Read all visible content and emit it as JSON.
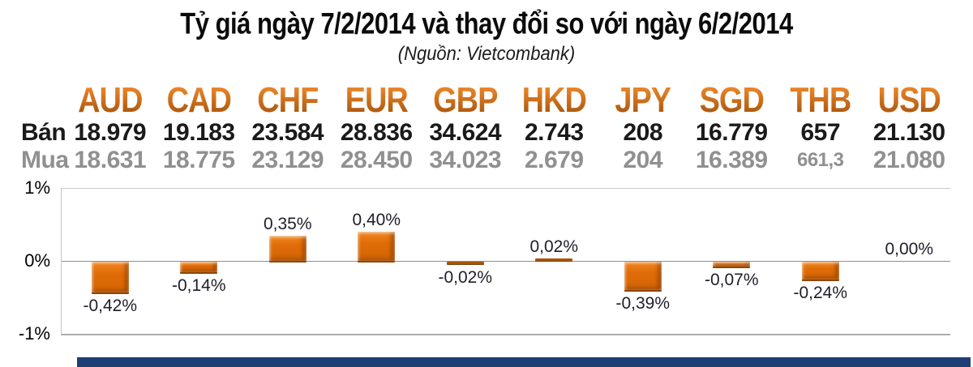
{
  "title": "Tỷ giá ngày 7/2/2014 và thay đổi so với ngày 6/2/2014",
  "subtitle": "(Nguồn: Vietcombank)",
  "table": {
    "sell_label": "Bán",
    "buy_label": "Mua",
    "currencies": [
      {
        "code": "AUD",
        "sell": "18.979",
        "buy": "18.631"
      },
      {
        "code": "CAD",
        "sell": "19.183",
        "buy": "18.775"
      },
      {
        "code": "CHF",
        "sell": "23.584",
        "buy": "23.129"
      },
      {
        "code": "EUR",
        "sell": "28.836",
        "buy": "28.450"
      },
      {
        "code": "GBP",
        "sell": "34.624",
        "buy": "34.023"
      },
      {
        "code": "HKD",
        "sell": "2.743",
        "buy": "2.679"
      },
      {
        "code": "JPY",
        "sell": "208",
        "buy": "204"
      },
      {
        "code": "SGD",
        "sell": "16.779",
        "buy": "16.389"
      },
      {
        "code": "THB",
        "sell": "657",
        "buy": "661,3",
        "buy_small": true
      },
      {
        "code": "USD",
        "sell": "21.130",
        "buy": "21.080"
      }
    ]
  },
  "chart_data": {
    "type": "bar",
    "categories": [
      "AUD",
      "CAD",
      "CHF",
      "EUR",
      "GBP",
      "HKD",
      "JPY",
      "SGD",
      "THB",
      "USD"
    ],
    "values": [
      -0.42,
      -0.14,
      0.35,
      0.4,
      -0.02,
      0.02,
      -0.39,
      -0.07,
      -0.24,
      0.0
    ],
    "value_labels": [
      "-0,42%",
      "-0,14%",
      "0,35%",
      "0,40%",
      "-0,02%",
      "0,02%",
      "-0,39%",
      "-0,07%",
      "-0,24%",
      "0,00%"
    ],
    "title": "Thay đổi so với ngày 6/2/2014",
    "xlabel": "",
    "ylabel": "",
    "ylim": [
      -1,
      1
    ],
    "ytick_labels": [
      "1%",
      "0%",
      "-1%"
    ],
    "grid": true,
    "legend": false,
    "bar_color": "#E06C08"
  },
  "colors": {
    "currency_header": "#CC660C",
    "sell_text": "#1A1A1A",
    "buy_text": "#909090",
    "bar": "#E06C08",
    "data_label_text": "#1E1E2A",
    "bottom_bar": "#1E3F73"
  }
}
